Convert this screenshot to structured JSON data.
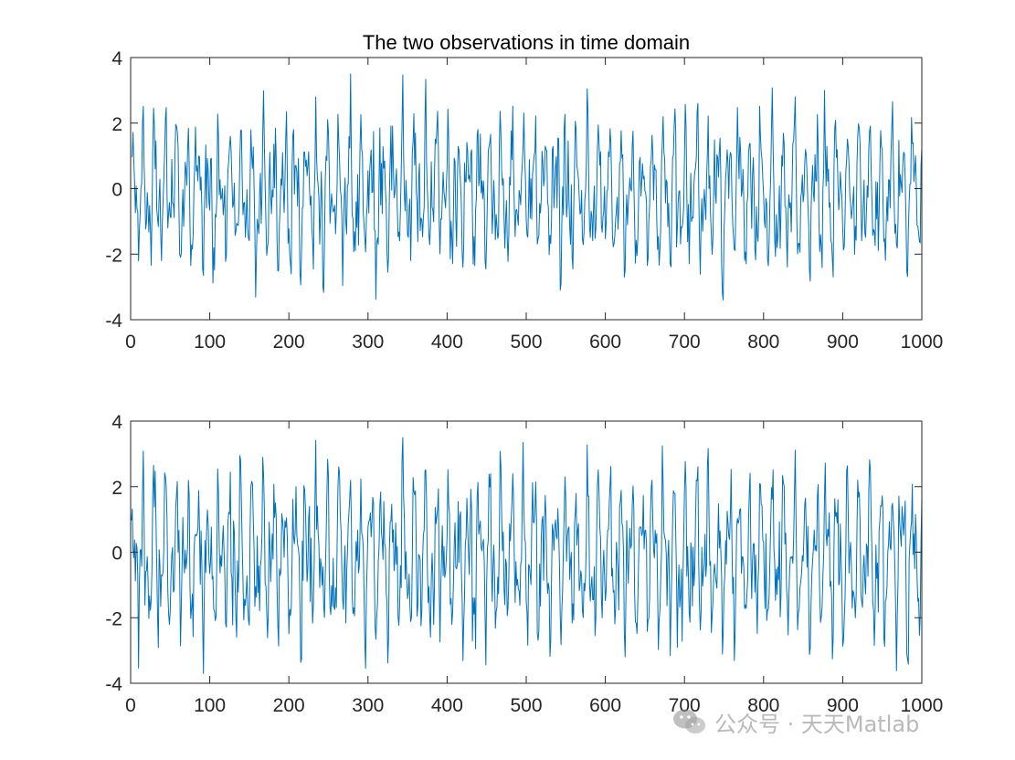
{
  "chart_data": [
    {
      "type": "line",
      "title": "The two observations in time domain",
      "xlabel": "",
      "ylabel": "",
      "xlim": [
        0,
        1000
      ],
      "ylim": [
        -4,
        4
      ],
      "xticks": [
        0,
        100,
        200,
        300,
        400,
        500,
        600,
        700,
        800,
        900,
        1000
      ],
      "yticks": [
        -4,
        -2,
        0,
        2,
        4
      ],
      "grid": false,
      "series": [
        {
          "color": "#0072BD",
          "x_range": [
            1,
            1000
          ],
          "n_points": 1000,
          "mean": 0,
          "amplitude_range": [
            -3.4,
            3.5
          ],
          "note_values": "dense oscillating noise-like signal; approx min -3.4 near x=628 and x=929, max 3.5 near x=742"
        }
      ]
    },
    {
      "type": "line",
      "title": "",
      "xlabel": "",
      "ylabel": "",
      "xlim": [
        0,
        1000
      ],
      "ylim": [
        -4,
        4
      ],
      "xticks": [
        0,
        100,
        200,
        300,
        400,
        500,
        600,
        700,
        800,
        900,
        1000
      ],
      "yticks": [
        -4,
        -2,
        0,
        2,
        4
      ],
      "grid": false,
      "series": [
        {
          "color": "#0072BD",
          "x_range": [
            1,
            1000
          ],
          "n_points": 1000,
          "mean": 0,
          "amplitude_range": [
            -3.7,
            3.5
          ],
          "note_values": "dense oscillating noise-like signal; approx min -3.7 near x=677, max 3.5 near x=140 and x=906"
        }
      ]
    }
  ],
  "watermark": {
    "text": "公众号 · 天天Matlab",
    "icon": "wechat-icon"
  }
}
